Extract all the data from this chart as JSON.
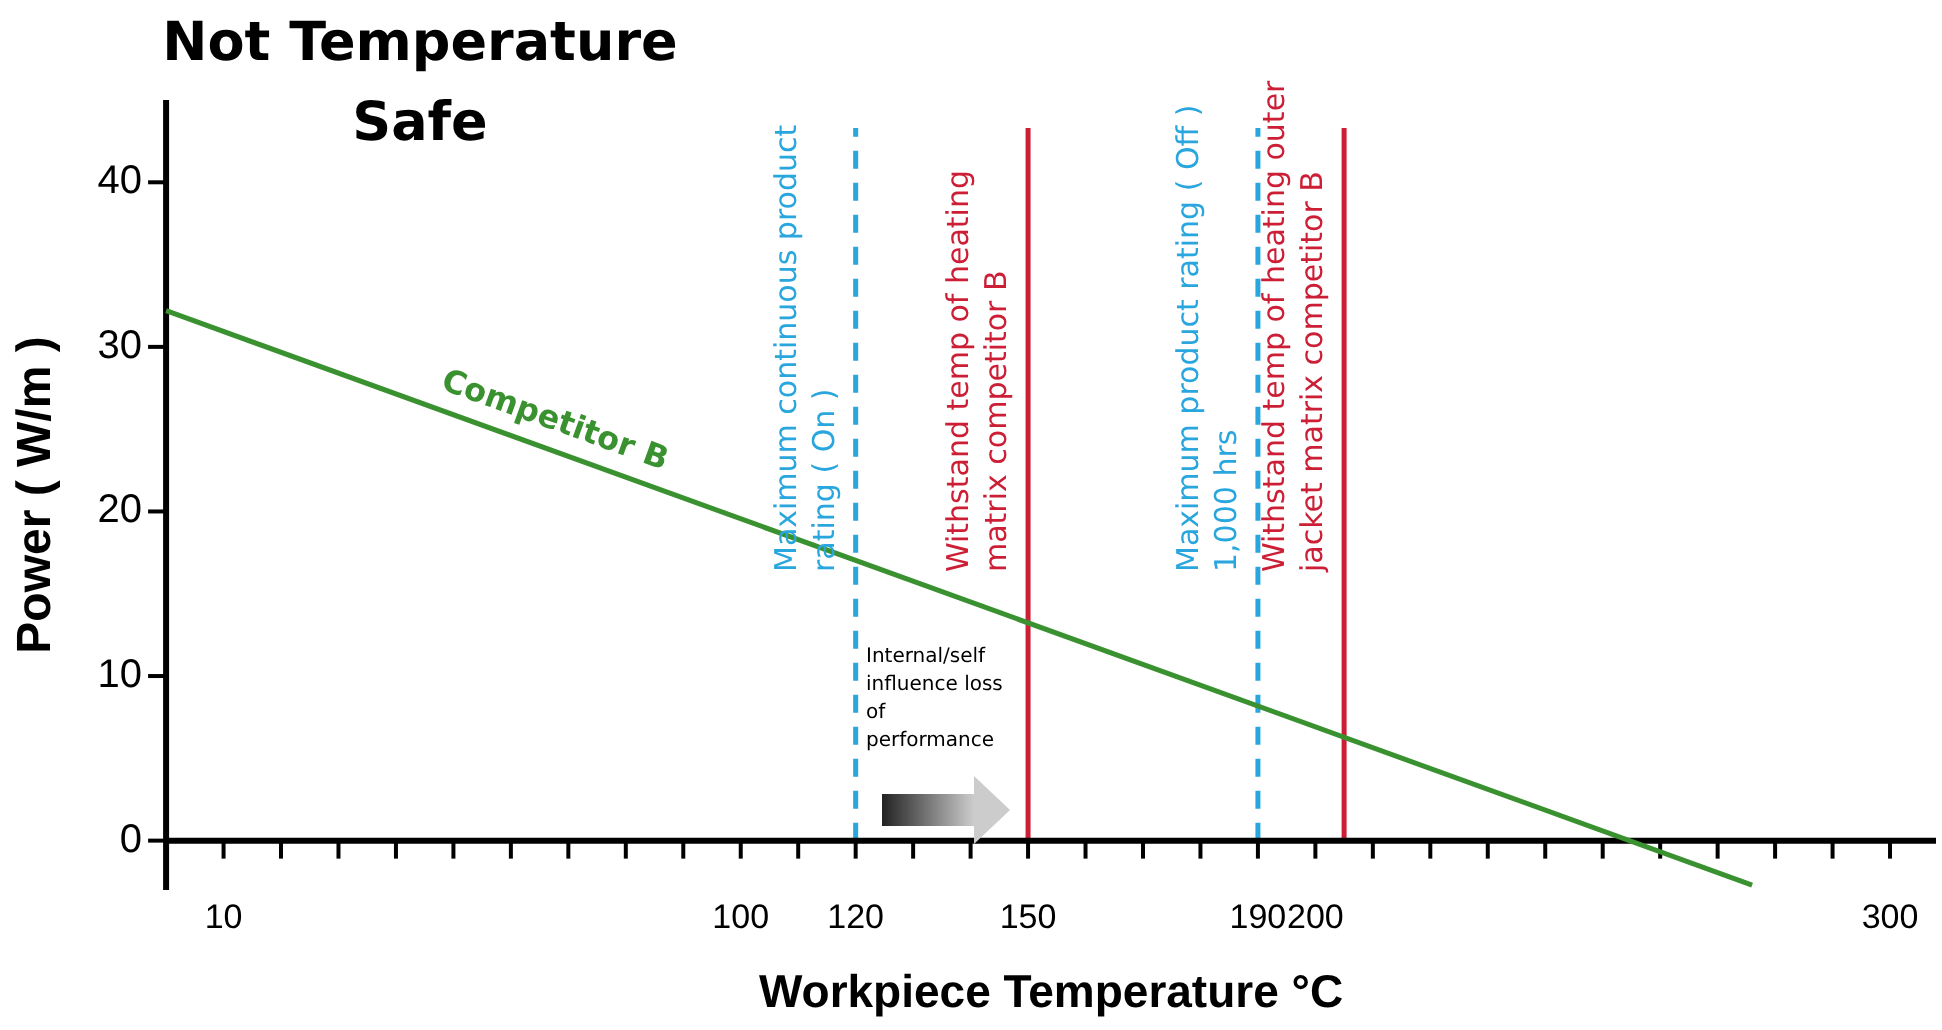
{
  "chart_data": {
    "type": "line",
    "title": "Not Temperature Safe",
    "xlabel": "Workpiece Temperature °C",
    "ylabel": "Power ( W/m )",
    "x": [
      0,
      276
    ],
    "series": [
      {
        "name": "Competitor B",
        "color": "#3a9130",
        "values": [
          32.2,
          -2.7
        ]
      }
    ],
    "xlim": [
      0,
      308
    ],
    "xticks": [
      {
        "value": 0,
        "label": null
      },
      10,
      {
        "value": 20,
        "label": null
      },
      {
        "value": 30,
        "label": null
      },
      {
        "value": 40,
        "label": null
      },
      {
        "value": 50,
        "label": null
      },
      {
        "value": 60,
        "label": null
      },
      {
        "value": 70,
        "label": null
      },
      {
        "value": 80,
        "label": null
      },
      {
        "value": 90,
        "label": null
      },
      100,
      {
        "value": 110,
        "label": null
      },
      120,
      {
        "value": 130,
        "label": null
      },
      {
        "value": 140,
        "label": null
      },
      150,
      {
        "value": 160,
        "label": null
      },
      {
        "value": 170,
        "label": null
      },
      {
        "value": 180,
        "label": null
      },
      190,
      200,
      {
        "value": 210,
        "label": null
      },
      {
        "value": 220,
        "label": null
      },
      {
        "value": 230,
        "label": null
      },
      {
        "value": 240,
        "label": null
      },
      {
        "value": 250,
        "label": null
      },
      {
        "value": 260,
        "label": null
      },
      {
        "value": 270,
        "label": null
      },
      {
        "value": 280,
        "label": null
      },
      {
        "value": 290,
        "label": null
      },
      300
    ],
    "ylim": [
      -3,
      45
    ],
    "yticks": [
      0,
      10,
      20,
      30,
      40
    ],
    "ref_lines": [
      {
        "axis": "x",
        "value": 120,
        "label": "Maximum continuous product rating ( On )",
        "color": "#29a6de",
        "line_style": "dashed"
      },
      {
        "axis": "x",
        "value": 150,
        "label": "Withstand temp of heating matrix competitor B",
        "color": "#cc1f36",
        "line_style": "solid"
      },
      {
        "axis": "x",
        "value": 190,
        "label": "Maximum product rating ( Off ) 1,000 hrs",
        "color": "#29a6de",
        "line_style": "dashed"
      },
      {
        "axis": "x",
        "value": 205,
        "label": "Withstand temp of heating outer jacket matrix competitor B",
        "color": "#cc1f36",
        "line_style": "solid"
      }
    ],
    "annotations": [
      "Internal/self influence loss of performance"
    ],
    "grid": false,
    "legend": false,
    "marker": "none",
    "line_style": "solid"
  }
}
